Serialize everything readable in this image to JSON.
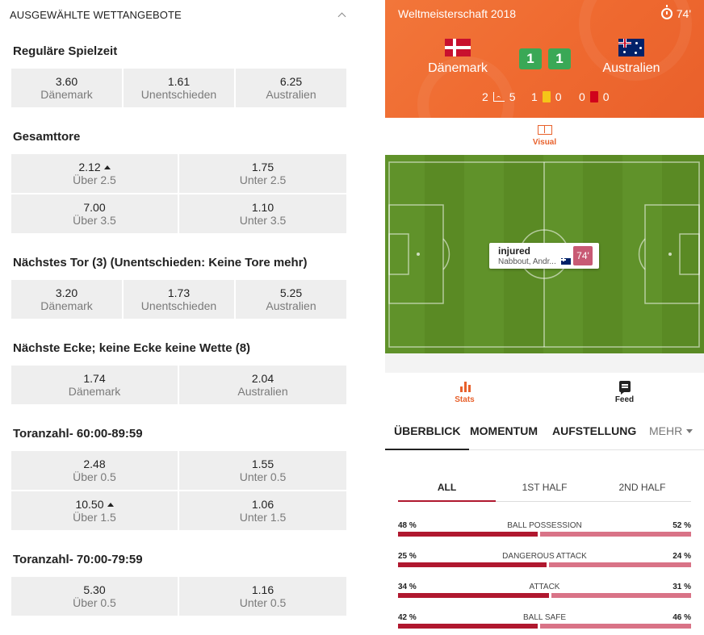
{
  "section": {
    "title": "AUSGEWÄHLTE WETTANGEBOTE"
  },
  "markets": {
    "regular": {
      "title": "Reguläre Spielzeit",
      "odds": [
        {
          "value": "3.60",
          "label": "Dänemark"
        },
        {
          "value": "1.61",
          "label": "Unentschieden"
        },
        {
          "value": "6.25",
          "label": "Australien"
        }
      ]
    },
    "total": {
      "title": "Gesamttore",
      "odds": [
        {
          "value": "2.12",
          "label": "Über 2.5",
          "trend": "up"
        },
        {
          "value": "1.75",
          "label": "Unter 2.5"
        },
        {
          "value": "7.00",
          "label": "Über 3.5"
        },
        {
          "value": "1.10",
          "label": "Unter 3.5"
        }
      ]
    },
    "next_goal": {
      "title": "Nächstes Tor (3) (Unentschieden: Keine Tore mehr)",
      "odds": [
        {
          "value": "3.20",
          "label": "Dänemark"
        },
        {
          "value": "1.73",
          "label": "Unentschieden"
        },
        {
          "value": "5.25",
          "label": "Australien"
        }
      ]
    },
    "next_corner": {
      "title": "Nächste Ecke; keine Ecke keine Wette (8)",
      "odds": [
        {
          "value": "1.74",
          "label": "Dänemark"
        },
        {
          "value": "2.04",
          "label": "Australien"
        }
      ]
    },
    "goals_60_89": {
      "title": "Toranzahl- 60:00-89:59",
      "odds": [
        {
          "value": "2.48",
          "label": "Über 0.5"
        },
        {
          "value": "1.55",
          "label": "Unter 0.5"
        },
        {
          "value": "10.50",
          "label": "Über 1.5",
          "trend": "up"
        },
        {
          "value": "1.06",
          "label": "Unter 1.5"
        }
      ]
    },
    "goals_70_79": {
      "title": "Toranzahl- 70:00-79:59",
      "odds": [
        {
          "value": "5.30",
          "label": "Über 0.5"
        },
        {
          "value": "1.16",
          "label": "Unter 0.5"
        }
      ]
    }
  },
  "match": {
    "competition": "Weltmeisterschaft 2018",
    "minute": "74'",
    "home": {
      "name": "Dänemark",
      "score": "1",
      "flag": "denmark-flag-icon"
    },
    "away": {
      "name": "Australien",
      "score": "1",
      "flag": "australia-flag-icon"
    },
    "corners": {
      "home": "2",
      "away": "5"
    },
    "yellow_cards": {
      "home": "1",
      "away": "0"
    },
    "red_cards": {
      "home": "0",
      "away": "0"
    }
  },
  "visual_tab": {
    "label": "Visual"
  },
  "event": {
    "title": "injured",
    "player": "Nabbout, Andr...",
    "minute": "74'"
  },
  "bottom_tabs": {
    "stats": "Stats",
    "feed": "Feed"
  },
  "nav": {
    "overview": "ÜBERBLICK",
    "momentum": "MOMENTUM",
    "lineup": "AUFSTELLUNG",
    "more": "MEHR"
  },
  "half_tabs": {
    "all": "ALL",
    "first": "1ST HALF",
    "second": "2ND HALF"
  },
  "stats": [
    {
      "name": "BALL POSSESSION",
      "home": "48 %",
      "away": "52 %",
      "home_val": 48,
      "away_val": 52
    },
    {
      "name": "DANGEROUS ATTACK",
      "home": "25 %",
      "away": "24 %",
      "home_val": 51,
      "away_val": 49
    },
    {
      "name": "ATTACK",
      "home": "34 %",
      "away": "31 %",
      "home_val": 52,
      "away_val": 48
    },
    {
      "name": "BALL SAFE",
      "home": "42 %",
      "away": "46 %",
      "home_val": 48,
      "away_val": 52
    }
  ],
  "colors": {
    "hero_orange": "#ef6a30",
    "accent_orange": "#e8612c",
    "home_bar": "#b0182f",
    "away_bar": "#d97387",
    "score_green": "#3aa856",
    "pitch_green": "#5a8a24"
  }
}
